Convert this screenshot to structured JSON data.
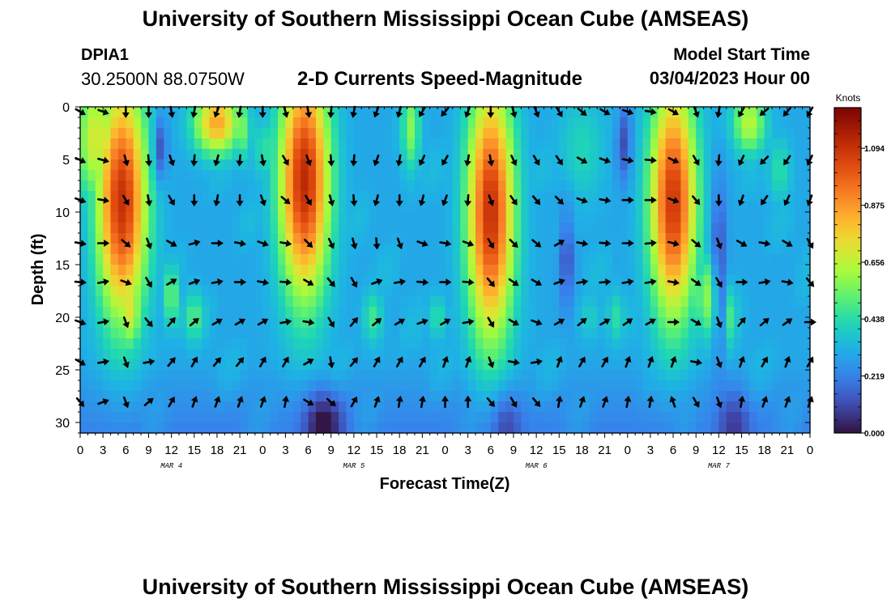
{
  "header": {
    "title": "University of Southern Mississippi Ocean Cube (AMSEAS)",
    "station": "DPIA1",
    "coords": "30.2500N  88.0750W",
    "subtitle": "2-D Currents Speed-Magnitude",
    "model_label": "Model Start Time",
    "model_time": "03/04/2023 Hour 00"
  },
  "footer": {
    "title": "University of Southern Mississippi Ocean Cube (AMSEAS)"
  },
  "colors": {
    "arrow": "#000000",
    "frame": "#000000",
    "background": "#ffffff"
  },
  "chart_data": {
    "type": "heatmap",
    "title": "2-D Currents Speed-Magnitude",
    "xlabel": "Forecast Time(Z)",
    "ylabel": "Depth (ft)",
    "x_ticks": [
      "0",
      "3",
      "6",
      "9",
      "12",
      "15",
      "18",
      "21",
      "0",
      "3",
      "6",
      "9",
      "12",
      "15",
      "18",
      "21",
      "0",
      "3",
      "6",
      "9",
      "12",
      "15",
      "18",
      "21",
      "0",
      "3",
      "6",
      "9",
      "12",
      "15",
      "18",
      "21",
      "0"
    ],
    "x_range_hours": [
      0,
      96
    ],
    "date_labels": [
      {
        "label": "MAR 4",
        "hour": 12
      },
      {
        "label": "MAR 5",
        "hour": 36
      },
      {
        "label": "MAR 6",
        "hour": 60
      },
      {
        "label": "MAR 7",
        "hour": 84
      }
    ],
    "y_ticks": [
      0,
      5,
      10,
      15,
      20,
      25,
      30
    ],
    "ylim": [
      0,
      31
    ],
    "colorbar": {
      "unit": "Knots",
      "range": [
        0,
        1.25
      ],
      "ticks": [
        "0.000",
        "0.219",
        "0.438",
        "0.656",
        "0.875",
        "1.094"
      ],
      "tick_values": [
        0.0,
        0.219,
        0.438,
        0.656,
        0.875,
        1.094
      ]
    },
    "speed_features": [
      {
        "t": 5.5,
        "z": 9,
        "v": 1.1,
        "st": 3.2,
        "sz": 11
      },
      {
        "t": 6.5,
        "z": 19,
        "v": 0.72,
        "st": 1.6,
        "sz": 4
      },
      {
        "t": 2,
        "z": 3,
        "v": 0.7,
        "st": 2.5,
        "sz": 6
      },
      {
        "t": 12,
        "z": 18,
        "v": 0.55,
        "st": 1,
        "sz": 3
      },
      {
        "t": 18,
        "z": 1.5,
        "v": 0.85,
        "st": 3,
        "sz": 3
      },
      {
        "t": 29.5,
        "z": 7,
        "v": 1.12,
        "st": 3.2,
        "sz": 11
      },
      {
        "t": 21.5,
        "z": 2,
        "v": 0.55,
        "st": 1,
        "sz": 3
      },
      {
        "t": 15,
        "z": 20,
        "v": 0.5,
        "st": 1.5,
        "sz": 2.5
      },
      {
        "t": 24.5,
        "z": 4,
        "v": 0.45,
        "st": 2,
        "sz": 3
      },
      {
        "t": 43.5,
        "z": 2,
        "v": 0.58,
        "st": 1.2,
        "sz": 4
      },
      {
        "t": 38.5,
        "z": 20,
        "v": 0.48,
        "st": 1.3,
        "sz": 2.5
      },
      {
        "t": 47,
        "z": 20,
        "v": 0.45,
        "st": 1.2,
        "sz": 2
      },
      {
        "t": 54,
        "z": 10,
        "v": 1.1,
        "st": 3,
        "sz": 12
      },
      {
        "t": 66,
        "z": 4,
        "v": 0.42,
        "st": 3,
        "sz": 5
      },
      {
        "t": 67,
        "z": 20,
        "v": 0.4,
        "st": 1.5,
        "sz": 2
      },
      {
        "t": 70.5,
        "z": 20,
        "v": 0.45,
        "st": 1.2,
        "sz": 2.5
      },
      {
        "t": 78,
        "z": 9,
        "v": 1.08,
        "st": 3,
        "sz": 11
      },
      {
        "t": 82.5,
        "z": 18,
        "v": 0.6,
        "st": 1.6,
        "sz": 4
      },
      {
        "t": 88,
        "z": 1.5,
        "v": 0.65,
        "st": 2.2,
        "sz": 3
      },
      {
        "t": 85.5,
        "z": 20,
        "v": 0.5,
        "st": 1,
        "sz": 3
      },
      {
        "t": 92,
        "z": 6,
        "v": 0.45,
        "st": 1.5,
        "sz": 3
      }
    ],
    "low_features": [
      {
        "t": 10.5,
        "z": 4,
        "d": 0.22,
        "st": 0.9,
        "sz": 3
      },
      {
        "t": 32,
        "z": 30,
        "d": 0.25,
        "st": 2.5,
        "sz": 3
      },
      {
        "t": 56,
        "z": 30,
        "d": 0.14,
        "st": 2,
        "sz": 3
      },
      {
        "t": 64,
        "z": 14,
        "d": 0.18,
        "st": 1,
        "sz": 5
      },
      {
        "t": 71.5,
        "z": 3,
        "d": 0.2,
        "st": 1,
        "sz": 4
      },
      {
        "t": 84,
        "z": 15,
        "d": 0.2,
        "st": 1,
        "sz": 8
      },
      {
        "t": 86,
        "z": 30,
        "d": 0.15,
        "st": 2,
        "sz": 3
      }
    ],
    "vectors": {
      "times": [
        0,
        3,
        6,
        9,
        12,
        15,
        18,
        21,
        24,
        27,
        30,
        33,
        36,
        39,
        42,
        45,
        48,
        51,
        54,
        57,
        60,
        63,
        66,
        69,
        72,
        75,
        78,
        81,
        84,
        87,
        90,
        93,
        96
      ],
      "depths": [
        0,
        4.6,
        8.4,
        12.5,
        16.2,
        20,
        23.8,
        27.6
      ],
      "direction_deg": [
        [
          120,
          110,
          180,
          180,
          170,
          190,
          200,
          190,
          180,
          165,
          170,
          185,
          190,
          200,
          195,
          210,
          220,
          200,
          180,
          165,
          160,
          150,
          130,
          120,
          110,
          100,
          120,
          160,
          190,
          210,
          230,
          220,
          210
        ],
        [
          115,
          105,
          165,
          175,
          160,
          185,
          195,
          185,
          170,
          150,
          160,
          175,
          185,
          200,
          190,
          205,
          210,
          190,
          170,
          155,
          150,
          145,
          120,
          110,
          100,
          95,
          115,
          150,
          185,
          205,
          225,
          215,
          205
        ],
        [
          110,
          100,
          150,
          170,
          150,
          180,
          190,
          180,
          160,
          130,
          150,
          165,
          175,
          195,
          180,
          195,
          200,
          185,
          160,
          145,
          140,
          135,
          110,
          100,
          90,
          90,
          110,
          140,
          180,
          200,
          215,
          205,
          200
        ],
        [
          100,
          90,
          130,
          160,
          120,
          75,
          90,
          100,
          110,
          100,
          135,
          155,
          165,
          175,
          160,
          110,
          100,
          110,
          150,
          135,
          130,
          60,
          100,
          95,
          90,
          85,
          105,
          130,
          160,
          120,
          100,
          120,
          150
        ],
        [
          95,
          80,
          110,
          150,
          60,
          70,
          80,
          90,
          100,
          95,
          120,
          140,
          150,
          70,
          80,
          95,
          90,
          95,
          140,
          125,
          120,
          70,
          80,
          85,
          80,
          80,
          100,
          125,
          150,
          90,
          80,
          100,
          140
        ],
        [
          110,
          80,
          160,
          140,
          40,
          50,
          60,
          60,
          60,
          80,
          100,
          150,
          40,
          50,
          60,
          70,
          60,
          80,
          150,
          120,
          110,
          60,
          50,
          60,
          55,
          60,
          90,
          120,
          160,
          40,
          50,
          55,
          90
        ],
        [
          120,
          80,
          160,
          80,
          40,
          30,
          40,
          40,
          30,
          30,
          60,
          170,
          40,
          30,
          30,
          30,
          20,
          20,
          160,
          100,
          80,
          20,
          30,
          30,
          20,
          20,
          20,
          100,
          160,
          20,
          30,
          20,
          30
        ],
        [
          140,
          70,
          160,
          50,
          30,
          20,
          20,
          20,
          20,
          10,
          120,
          130,
          30,
          20,
          10,
          10,
          0,
          0,
          140,
          150,
          140,
          10,
          20,
          20,
          10,
          10,
          340,
          150,
          160,
          10,
          20,
          20,
          20
        ]
      ]
    }
  }
}
